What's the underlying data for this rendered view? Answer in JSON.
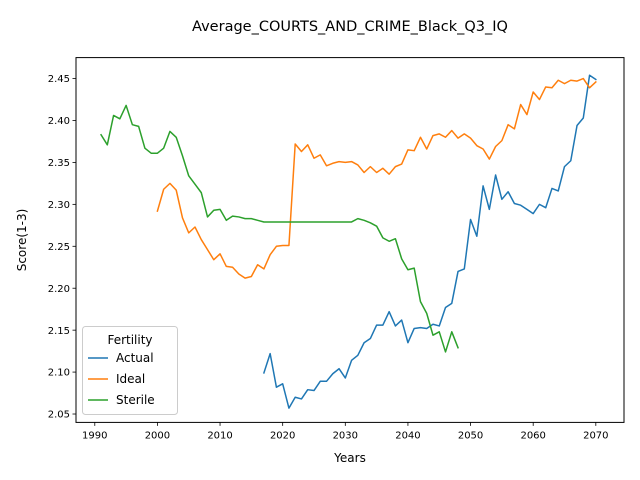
{
  "chart_data": {
    "type": "line",
    "title": "Average_COURTS_AND_CRIME_Black_Q3_IQ",
    "xlabel": "Years",
    "ylabel": "Score(1-3)",
    "xlim": [
      1987,
      2074.5
    ],
    "ylim": [
      2.04,
      2.475
    ],
    "x_ticks": [
      1990,
      2000,
      2010,
      2020,
      2030,
      2040,
      2050,
      2060,
      2070
    ],
    "y_ticks": [
      2.05,
      2.1,
      2.15,
      2.2,
      2.25,
      2.3,
      2.35,
      2.4,
      2.45
    ],
    "x_tick_labels": [
      "1990",
      "2000",
      "2010",
      "2020",
      "2030",
      "2040",
      "2050",
      "2060",
      "2070"
    ],
    "y_tick_labels": [
      "2.05",
      "2.10",
      "2.15",
      "2.20",
      "2.25",
      "2.30",
      "2.35",
      "2.40",
      "2.45"
    ],
    "grid": false,
    "legend": {
      "title": "Fertility",
      "placement": "lower-left"
    },
    "series": [
      {
        "name": "Actual",
        "color": "#1f77b4",
        "points": [
          [
            2017,
            2.099
          ],
          [
            2018,
            2.122
          ],
          [
            2019,
            2.082
          ],
          [
            2020,
            2.086
          ],
          [
            2021,
            2.057
          ],
          [
            2022,
            2.07
          ],
          [
            2023,
            2.068
          ],
          [
            2024,
            2.079
          ],
          [
            2025,
            2.078
          ],
          [
            2026,
            2.089
          ],
          [
            2027,
            2.089
          ],
          [
            2028,
            2.098
          ],
          [
            2029,
            2.104
          ],
          [
            2030,
            2.093
          ],
          [
            2031,
            2.114
          ],
          [
            2032,
            2.12
          ],
          [
            2033,
            2.135
          ],
          [
            2034,
            2.14
          ],
          [
            2035,
            2.156
          ],
          [
            2036,
            2.156
          ],
          [
            2037,
            2.172
          ],
          [
            2038,
            2.155
          ],
          [
            2039,
            2.162
          ],
          [
            2040,
            2.135
          ],
          [
            2041,
            2.152
          ],
          [
            2042,
            2.153
          ],
          [
            2043,
            2.152
          ],
          [
            2044,
            2.157
          ],
          [
            2045,
            2.155
          ],
          [
            2046,
            2.177
          ],
          [
            2047,
            2.182
          ],
          [
            2048,
            2.22
          ],
          [
            2049,
            2.223
          ],
          [
            2050,
            2.282
          ],
          [
            2051,
            2.262
          ],
          [
            2052,
            2.322
          ],
          [
            2053,
            2.294
          ],
          [
            2054,
            2.335
          ],
          [
            2055,
            2.306
          ],
          [
            2056,
            2.315
          ],
          [
            2057,
            2.301
          ],
          [
            2058,
            2.299
          ],
          [
            2059,
            2.294
          ],
          [
            2060,
            2.289
          ],
          [
            2061,
            2.3
          ],
          [
            2062,
            2.296
          ],
          [
            2063,
            2.319
          ],
          [
            2064,
            2.316
          ],
          [
            2065,
            2.345
          ],
          [
            2066,
            2.352
          ],
          [
            2067,
            2.394
          ],
          [
            2068,
            2.403
          ],
          [
            2069,
            2.454
          ],
          [
            2070,
            2.449
          ]
        ]
      },
      {
        "name": "Ideal",
        "color": "#ff7f0e",
        "points": [
          [
            2000,
            2.292
          ],
          [
            2001,
            2.318
          ],
          [
            2002,
            2.325
          ],
          [
            2003,
            2.317
          ],
          [
            2004,
            2.284
          ],
          [
            2005,
            2.266
          ],
          [
            2006,
            2.273
          ],
          [
            2007,
            2.258
          ],
          [
            2008,
            2.246
          ],
          [
            2009,
            2.234
          ],
          [
            2010,
            2.241
          ],
          [
            2011,
            2.226
          ],
          [
            2012,
            2.225
          ],
          [
            2013,
            2.217
          ],
          [
            2014,
            2.212
          ],
          [
            2015,
            2.214
          ],
          [
            2016,
            2.228
          ],
          [
            2017,
            2.223
          ],
          [
            2018,
            2.24
          ],
          [
            2019,
            2.25
          ],
          [
            2020,
            2.251
          ],
          [
            2021,
            2.251
          ],
          [
            2022,
            2.372
          ],
          [
            2023,
            2.363
          ],
          [
            2024,
            2.371
          ],
          [
            2025,
            2.355
          ],
          [
            2026,
            2.359
          ],
          [
            2027,
            2.346
          ],
          [
            2028,
            2.349
          ],
          [
            2029,
            2.351
          ],
          [
            2030,
            2.35
          ],
          [
            2031,
            2.351
          ],
          [
            2032,
            2.347
          ],
          [
            2033,
            2.338
          ],
          [
            2034,
            2.345
          ],
          [
            2035,
            2.338
          ],
          [
            2036,
            2.343
          ],
          [
            2037,
            2.336
          ],
          [
            2038,
            2.345
          ],
          [
            2039,
            2.348
          ],
          [
            2040,
            2.365
          ],
          [
            2041,
            2.364
          ],
          [
            2042,
            2.38
          ],
          [
            2043,
            2.366
          ],
          [
            2044,
            2.382
          ],
          [
            2045,
            2.384
          ],
          [
            2046,
            2.38
          ],
          [
            2047,
            2.388
          ],
          [
            2048,
            2.379
          ],
          [
            2049,
            2.384
          ],
          [
            2050,
            2.379
          ],
          [
            2051,
            2.37
          ],
          [
            2052,
            2.366
          ],
          [
            2053,
            2.354
          ],
          [
            2054,
            2.369
          ],
          [
            2055,
            2.376
          ],
          [
            2056,
            2.395
          ],
          [
            2057,
            2.39
          ],
          [
            2058,
            2.419
          ],
          [
            2059,
            2.407
          ],
          [
            2060,
            2.434
          ],
          [
            2061,
            2.425
          ],
          [
            2062,
            2.44
          ],
          [
            2063,
            2.439
          ],
          [
            2064,
            2.448
          ],
          [
            2065,
            2.444
          ],
          [
            2066,
            2.448
          ],
          [
            2067,
            2.447
          ],
          [
            2068,
            2.45
          ],
          [
            2069,
            2.439
          ],
          [
            2070,
            2.446
          ]
        ]
      },
      {
        "name": "Sterile",
        "color": "#2ca02c",
        "points": [
          [
            1991,
            2.383
          ],
          [
            1992,
            2.371
          ],
          [
            1993,
            2.406
          ],
          [
            1994,
            2.402
          ],
          [
            1995,
            2.418
          ],
          [
            1996,
            2.395
          ],
          [
            1997,
            2.393
          ],
          [
            1998,
            2.367
          ],
          [
            1999,
            2.361
          ],
          [
            2000,
            2.361
          ],
          [
            2001,
            2.367
          ],
          [
            2002,
            2.387
          ],
          [
            2003,
            2.38
          ],
          [
            2004,
            2.358
          ],
          [
            2005,
            2.334
          ],
          [
            2006,
            2.324
          ],
          [
            2007,
            2.314
          ],
          [
            2008,
            2.285
          ],
          [
            2009,
            2.293
          ],
          [
            2010,
            2.294
          ],
          [
            2011,
            2.281
          ],
          [
            2012,
            2.286
          ],
          [
            2013,
            2.285
          ],
          [
            2014,
            2.283
          ],
          [
            2015,
            2.283
          ],
          [
            2016,
            2.281
          ],
          [
            2017,
            2.279
          ],
          [
            2018,
            2.279
          ],
          [
            2019,
            2.279
          ],
          [
            2020,
            2.279
          ],
          [
            2021,
            2.279
          ],
          [
            2022,
            2.279
          ],
          [
            2023,
            2.279
          ],
          [
            2024,
            2.279
          ],
          [
            2025,
            2.279
          ],
          [
            2026,
            2.279
          ],
          [
            2027,
            2.279
          ],
          [
            2028,
            2.279
          ],
          [
            2029,
            2.279
          ],
          [
            2030,
            2.279
          ],
          [
            2031,
            2.279
          ],
          [
            2032,
            2.283
          ],
          [
            2033,
            2.281
          ],
          [
            2034,
            2.278
          ],
          [
            2035,
            2.274
          ],
          [
            2036,
            2.26
          ],
          [
            2037,
            2.256
          ],
          [
            2038,
            2.259
          ],
          [
            2039,
            2.235
          ],
          [
            2040,
            2.222
          ],
          [
            2041,
            2.224
          ],
          [
            2042,
            2.184
          ],
          [
            2043,
            2.17
          ],
          [
            2044,
            2.144
          ],
          [
            2045,
            2.148
          ],
          [
            2046,
            2.124
          ],
          [
            2047,
            2.148
          ],
          [
            2048,
            2.129
          ]
        ]
      }
    ]
  }
}
